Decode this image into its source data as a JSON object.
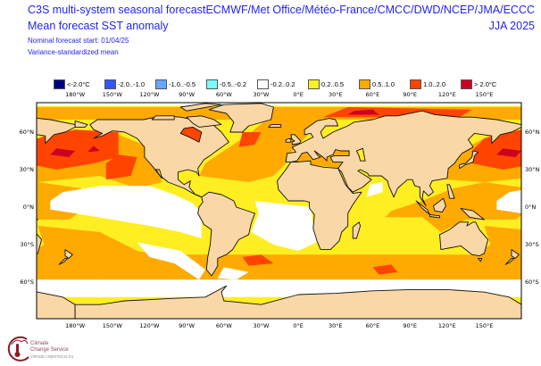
{
  "header": {
    "title": "C3S multi-system seasonal forecast",
    "subtitle": "Mean forecast SST anomaly",
    "start": "Nominal forecast start: 01/04/25",
    "method": "Variance-standardized mean",
    "centres": "ECMWF/Met Office/Météo-France/CMCC/DWD/NCEP/JMA/ECCC",
    "period": "JJA 2025"
  },
  "legend": [
    {
      "label": "<-2.0°C",
      "color": "#00007f"
    },
    {
      "label": "-2.0..-1.0",
      "color": "#3355ff"
    },
    {
      "label": "-1.0..-0.5",
      "color": "#66a6ff"
    },
    {
      "label": "-0.5..-0.2",
      "color": "#77ffff"
    },
    {
      "label": "-0.2..0.2",
      "color": "#ffffff"
    },
    {
      "label": "0.2..0.5",
      "color": "#ffee22"
    },
    {
      "label": "0.5..1.0",
      "color": "#ffaa00"
    },
    {
      "label": "1.0..2.0",
      "color": "#ff4400"
    },
    {
      "label": "> 2.0°C",
      "color": "#cc0022"
    }
  ],
  "axes": {
    "lon_labels": [
      "180°W",
      "150°W",
      "120°W",
      "90°W",
      "60°W",
      "30°W",
      "0°E",
      "30°E",
      "60°E",
      "90°E",
      "120°E",
      "150°E"
    ],
    "lat_labels": [
      "60°N",
      "30°N",
      "0°N",
      "30°S",
      "60°S"
    ]
  },
  "colors": {
    "land": "#fad7a6",
    "text": "#2424f0"
  },
  "logo": {
    "name": "Climate Change Service",
    "line1": "Climate",
    "line2": "Change Service",
    "url": "climate.copernicus.eu"
  }
}
